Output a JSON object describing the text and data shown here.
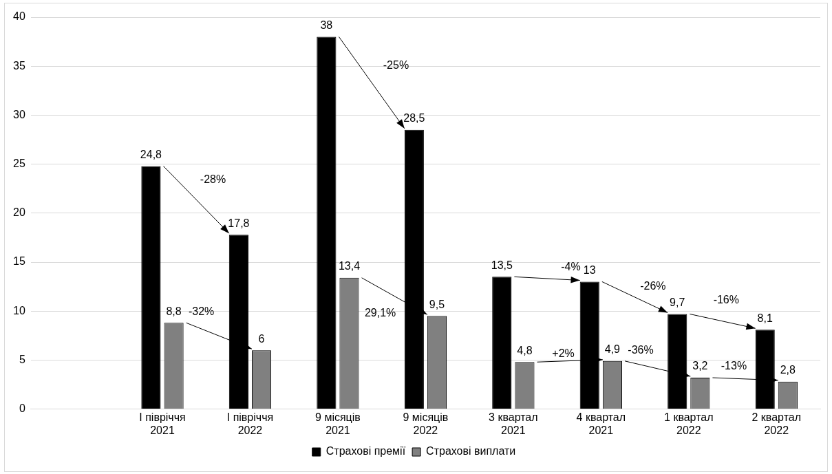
{
  "chart_data": {
    "type": "bar",
    "categories": [
      null,
      "І півріччя 2021",
      "І півріччя 2022",
      "9 місяців 2021",
      "9 місяців 2022",
      "3 квартал 2021",
      "4 квартал 2021",
      "1 квартал 2022",
      "2 квартал 2022"
    ],
    "series": [
      {
        "name": "Страхові премії",
        "color": "#000000",
        "values": [
          null,
          24.8,
          17.8,
          38,
          28.5,
          13.5,
          13,
          9.7,
          8.1
        ],
        "value_labels": [
          null,
          "24,8",
          "17,8",
          "38",
          "28,5",
          "13,5",
          "13",
          "9,7",
          "8,1"
        ]
      },
      {
        "name": "Страхові виплати",
        "color": "#808080",
        "values": [
          null,
          8.8,
          6,
          13.4,
          9.5,
          4.8,
          4.9,
          3.2,
          2.8
        ],
        "value_labels": [
          null,
          "8,8",
          "6",
          "13,4",
          "9,5",
          "4,8",
          "4,9",
          "3,2",
          "2,8"
        ]
      }
    ],
    "ylim": [
      0,
      40
    ],
    "yticks": [
      0,
      5,
      10,
      15,
      20,
      25,
      30,
      35,
      40
    ],
    "grid": "y",
    "legend": "bottom",
    "annotations": [
      "-28%",
      {
        "text": "-32%",
        "x": "І півріччя 2022",
        "y": 6
      },
      "-25%",
      {
        "text": "29,1%",
        "x": "9 місяців 2022",
        "y": 9.5
      },
      {
        "text": "-4%",
        "x": "4 квартал 2021",
        "y": 13
      },
      {
        "text": "+2%",
        "x": "4 квартал 2021",
        "y": 4.9
      },
      {
        "text": "-26%",
        "x": "1 квартал 2022",
        "y": 9.7
      },
      {
        "text": "-36%",
        "x": "1 квартал 2022",
        "y": 3.2
      },
      "-16%",
      {
        "text": "-13%",
        "x": "2 квартал 2022",
        "y": 2.8
      }
    ]
  }
}
